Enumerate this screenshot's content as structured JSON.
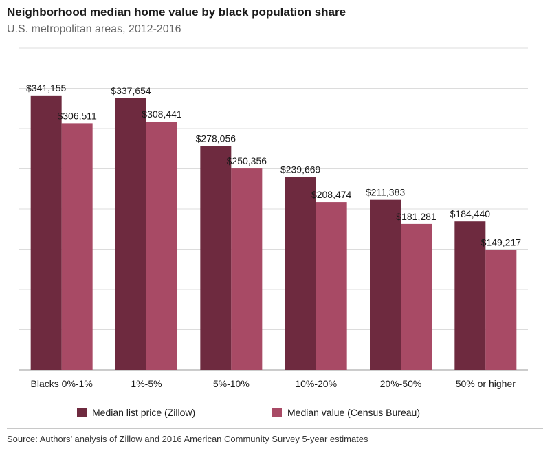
{
  "chart_data": {
    "type": "bar",
    "title": "Neighborhood median home value by black population share",
    "subtitle": "U.S. metropolitan areas, 2012-2016",
    "categories": [
      "Blacks 0%-1%",
      "1%-5%",
      "5%-10%",
      "10%-20%",
      "20%-50%",
      "50% or higher"
    ],
    "series": [
      {
        "name": "Median list price (Zillow)",
        "color": "#6e2a3f",
        "values": [
          341155,
          337654,
          278056,
          239669,
          211383,
          184440
        ],
        "labels": [
          "$341,155",
          "$337,654",
          "$278,056",
          "$239,669",
          "$211,383",
          "$184,440"
        ]
      },
      {
        "name": "Median value (Census Bureau)",
        "color": "#a84a65",
        "values": [
          306511,
          308441,
          250356,
          208474,
          181281,
          149217
        ],
        "labels": [
          "$306,511",
          "$308,441",
          "$250,356",
          "$208,474",
          "$181,281",
          "$149,217"
        ]
      }
    ],
    "ylim": [
      0,
      400000
    ],
    "grid": true,
    "legend": "bottom"
  },
  "source": "Source: Authors’ analysis of Zillow and 2016 American Community Survey 5-year estimates"
}
